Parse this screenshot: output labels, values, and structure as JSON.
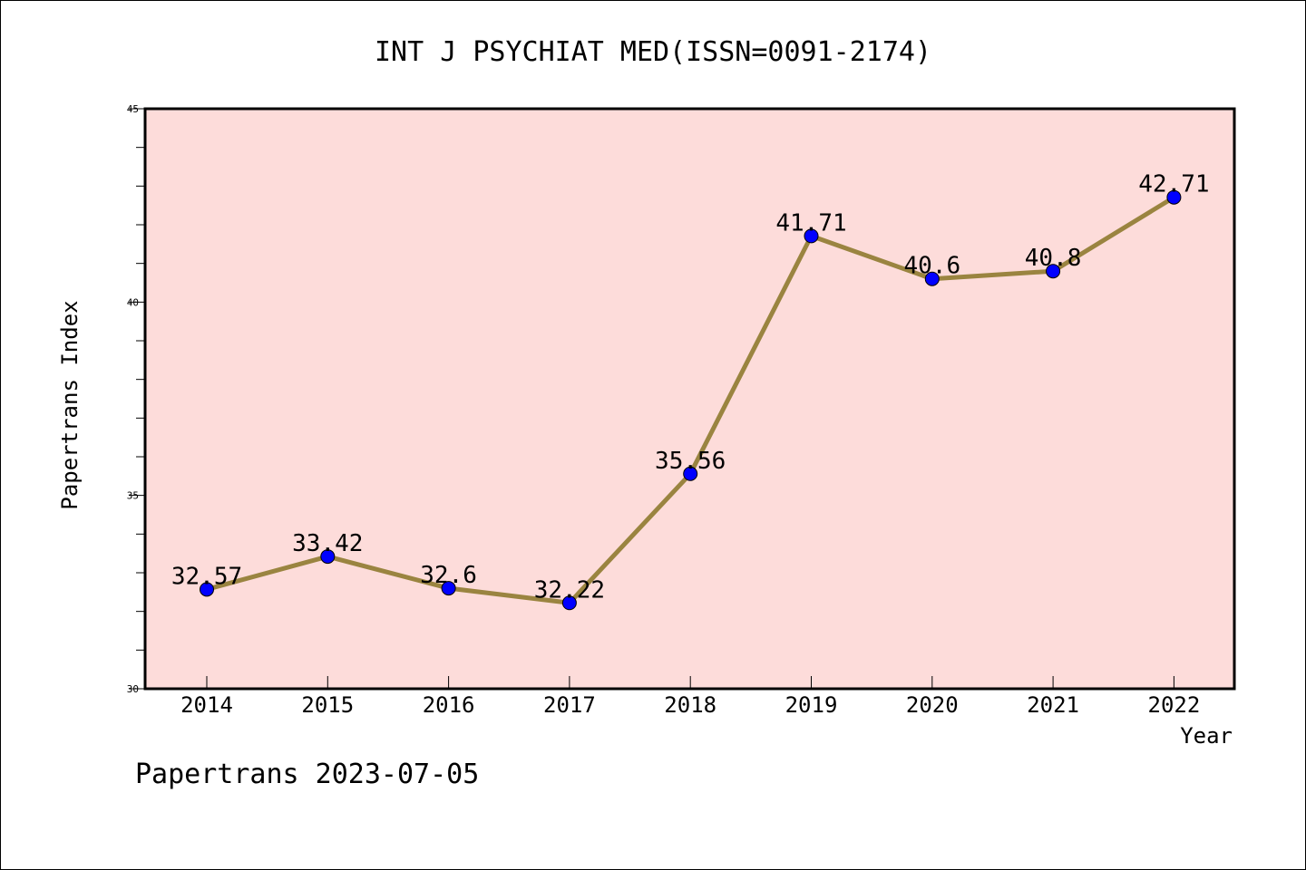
{
  "chart_data": {
    "type": "line",
    "title": "INT J PSYCHIAT MED(ISSN=0091-2174)",
    "xlabel": "Year",
    "ylabel": "Papertrans Index",
    "categories": [
      "2014",
      "2015",
      "2016",
      "2017",
      "2018",
      "2019",
      "2020",
      "2021",
      "2022"
    ],
    "series": [
      {
        "values": [
          32.57,
          33.42,
          32.6,
          32.22,
          35.56,
          41.71,
          40.6,
          40.8,
          42.71
        ],
        "labels": [
          "32.57",
          "33.42",
          "32.6",
          "32.22",
          "35.56",
          "41.71",
          "40.6",
          "40.8",
          "42.71"
        ]
      }
    ],
    "ylim": [
      30,
      45
    ],
    "yticks": [
      "30",
      "35",
      "40",
      "45"
    ],
    "grid": false,
    "colors": {
      "plot_background": "#fddcda",
      "line": "#9a8440",
      "marker": "#0000ff"
    }
  },
  "footer": {
    "text": "Papertrans 2023-07-05"
  }
}
